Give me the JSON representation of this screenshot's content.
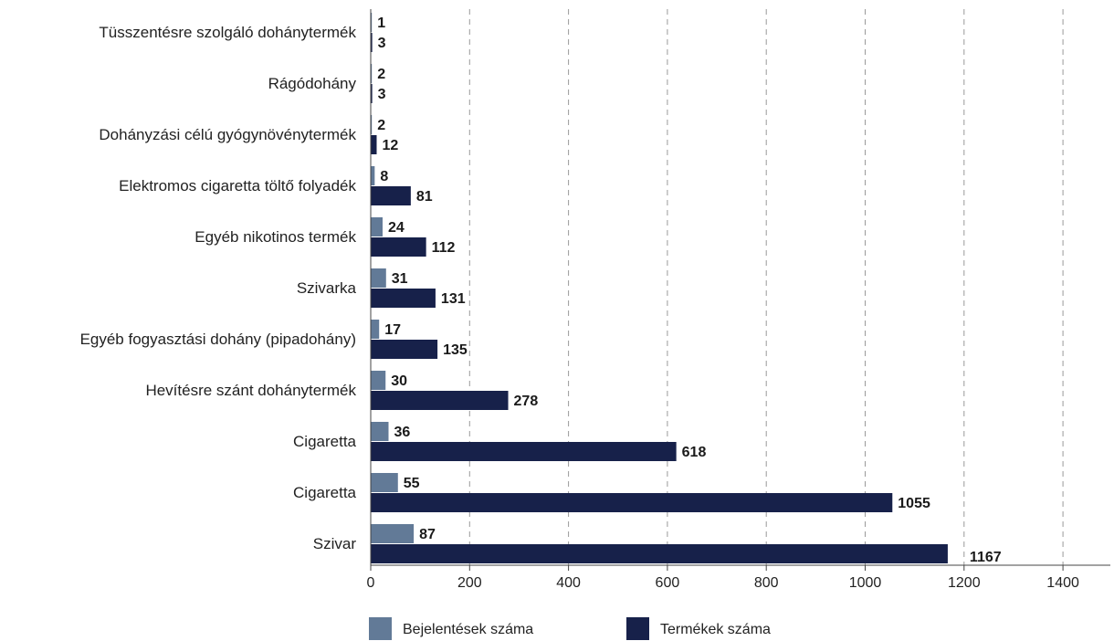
{
  "chart_data": {
    "type": "bar",
    "orientation": "horizontal",
    "categories": [
      "Tüsszentésre szolgáló dohánytermék",
      "Rágódohány",
      "Dohányzási célú gyógynövénytermék",
      "Elektromos cigaretta töltő folyadék",
      "Egyéb nikotinos termék",
      "Szivarka",
      "Egyéb fogyasztási dohány (pipadohány)",
      "Hevítésre szánt dohánytermék",
      "Cigaretta",
      "Cigaretta",
      "Szivar"
    ],
    "series": [
      {
        "name": "Bejelentések száma",
        "values": [
          1,
          2,
          2,
          8,
          24,
          31,
          17,
          30,
          36,
          55,
          87
        ],
        "color": "#627a97"
      },
      {
        "name": "Termékek száma",
        "values": [
          3,
          3,
          12,
          81,
          112,
          131,
          135,
          278,
          618,
          1055,
          1167
        ],
        "color": "#17214a"
      }
    ],
    "xlim": [
      0,
      1400
    ],
    "xticks": [
      "0",
      "200",
      "400",
      "600",
      "800",
      "1000",
      "1200",
      "1400"
    ],
    "grid": "vertical dashed",
    "legend_position": "bottom"
  }
}
